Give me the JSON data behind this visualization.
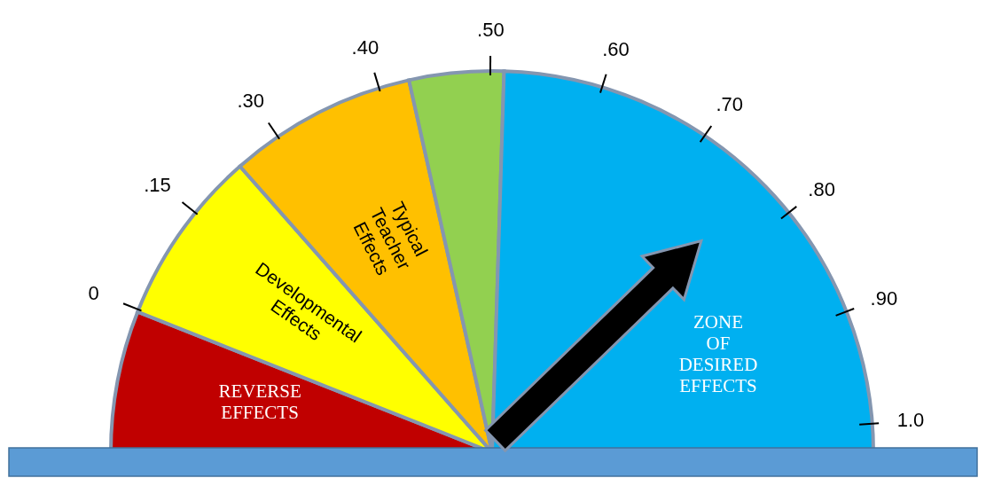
{
  "chart_data": {
    "type": "pie",
    "categories": [
      "REVERSE EFFECTS",
      "Developmental Effects",
      "Typical Teacher Effects",
      null,
      "ZONE OF DESIRED EFFECTS"
    ],
    "values": [
      12,
      15,
      16,
      8,
      49
    ],
    "colors": [
      "#c00000",
      "#ffff00",
      "#ffc000",
      "#92d050",
      "#00b0f0"
    ],
    "needle": "ZONE OF DESIRED EFFECTS",
    "annotations": [
      "0",
      ".15",
      ".30",
      ".40",
      ".50",
      ".60",
      ".70",
      ".80",
      ".90",
      "1.0"
    ]
  }
}
